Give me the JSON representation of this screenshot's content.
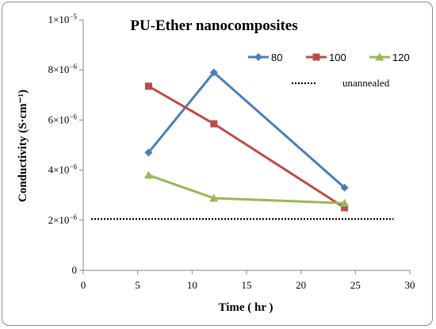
{
  "chart_data": {
    "type": "line",
    "title": "PU-Ether nanocomposites",
    "xlabel": "Time ( hr )",
    "ylabel": "Conductivity (S·cm⁻¹)",
    "xlim": [
      0,
      30
    ],
    "ylim": [
      0,
      1e-05
    ],
    "x_ticks": [
      0,
      5,
      10,
      15,
      20,
      25,
      30
    ],
    "y_ticks": [
      {
        "value": 0,
        "base": "0",
        "exp": ""
      },
      {
        "value": 2e-06,
        "base": "2×10",
        "exp": "−6"
      },
      {
        "value": 4e-06,
        "base": "4×10",
        "exp": "−6"
      },
      {
        "value": 6e-06,
        "base": "6×10",
        "exp": "−6"
      },
      {
        "value": 8e-06,
        "base": "8×10",
        "exp": "−6"
      },
      {
        "value": 1e-05,
        "base": "1×10",
        "exp": "−5"
      }
    ],
    "grid": false,
    "legend_position": "top-right",
    "series": [
      {
        "name": "80",
        "color": "#4a7ebb",
        "marker": "diamond",
        "x": [
          6,
          12,
          24
        ],
        "y": [
          4.7e-06,
          7.9e-06,
          3.3e-06
        ]
      },
      {
        "name": "100",
        "color": "#be4b48",
        "marker": "square",
        "x": [
          6,
          12,
          24
        ],
        "y": [
          7.35e-06,
          5.85e-06,
          2.5e-06
        ]
      },
      {
        "name": "120",
        "color": "#98b954",
        "marker": "triangle",
        "x": [
          6,
          12,
          24
        ],
        "y": [
          3.8e-06,
          2.88e-06,
          2.68e-06
        ]
      }
    ],
    "reference_line": {
      "name": "unannealed",
      "y": 2.05e-06,
      "x_range": [
        0,
        28.5
      ],
      "style": "dotted",
      "color": "#000000"
    }
  }
}
